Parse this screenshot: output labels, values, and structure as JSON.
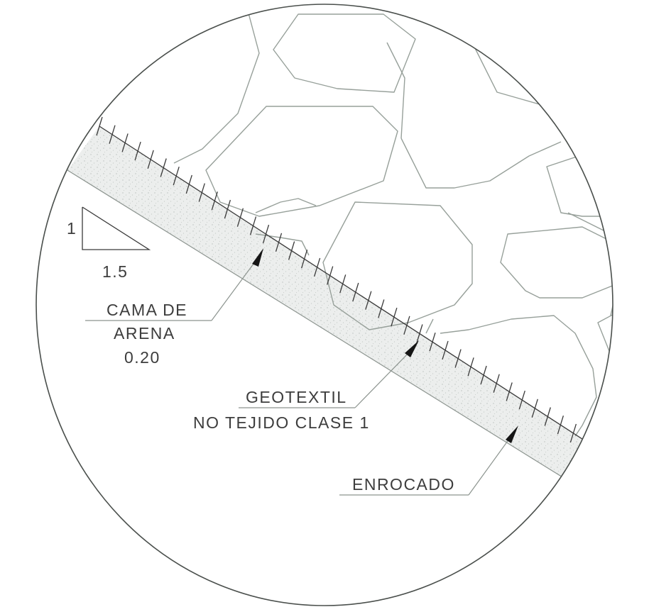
{
  "labels": {
    "slope_rise": "1",
    "slope_run": "1.5",
    "sand_bed_line1": "CAMA DE",
    "sand_bed_line2": "ARENA",
    "sand_bed_thickness": "0.20",
    "geotextile_line1": "GEOTEXTIL",
    "geotextile_line2": "NO TEJIDO CLASE 1",
    "riprap": "ENROCADO"
  },
  "colors": {
    "ink": "#3a3a3a",
    "rock_outline": "#97a09a",
    "sand_fill": "#e9eceb",
    "background": "#ffffff"
  },
  "icons": [
    "slope-triangle-icon",
    "leader-arrow-icon"
  ]
}
